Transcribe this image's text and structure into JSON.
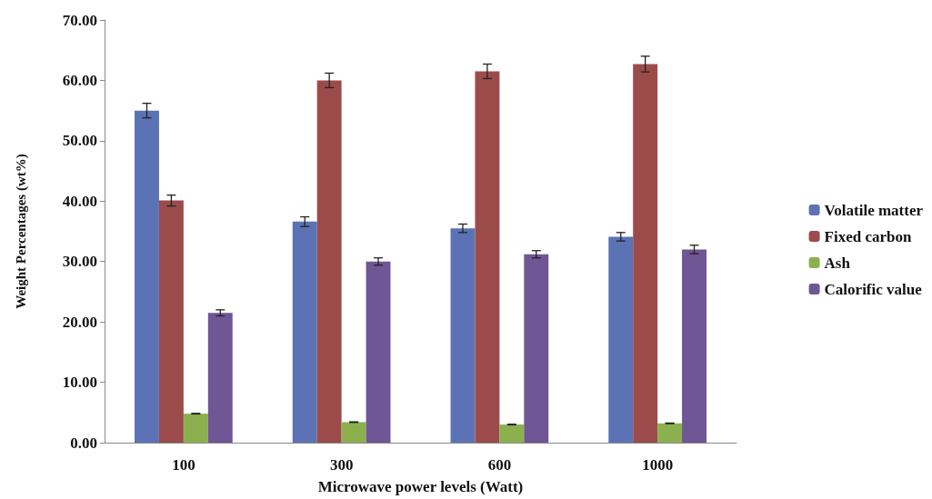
{
  "chart_data": {
    "type": "bar",
    "xlabel": "Microwave power levels (Watt)",
    "ylabel": "Weight Percentages (wt%)",
    "categories": [
      "100",
      "300",
      "600",
      "1000"
    ],
    "series": [
      {
        "name": "Volatile matter",
        "color": "#5b73b4",
        "values": [
          55.0,
          36.6,
          35.5,
          34.1
        ],
        "errors": [
          1.2,
          0.8,
          0.7,
          0.7
        ]
      },
      {
        "name": "Fixed carbon",
        "color": "#9c4b4b",
        "values": [
          40.1,
          60.0,
          61.5,
          62.7
        ],
        "errors": [
          0.9,
          1.2,
          1.2,
          1.3
        ]
      },
      {
        "name": "Ash",
        "color": "#8db04f",
        "values": [
          4.8,
          3.4,
          3.0,
          3.2
        ],
        "errors": [
          0.05,
          0.05,
          0.05,
          0.05
        ]
      },
      {
        "name": "Calorific value",
        "color": "#6f5694",
        "values": [
          21.5,
          30.0,
          31.2,
          32.0
        ],
        "errors": [
          0.5,
          0.6,
          0.6,
          0.7
        ]
      }
    ],
    "ylim": [
      0,
      70
    ],
    "yticks": [
      {
        "value": 0,
        "label": "0.00"
      },
      {
        "value": 10,
        "label": "10.00"
      },
      {
        "value": 20,
        "label": "20.00"
      },
      {
        "value": 30,
        "label": "30.00"
      },
      {
        "value": 40,
        "label": "40.00"
      },
      {
        "value": 50,
        "label": "50.00"
      },
      {
        "value": 60,
        "label": "60.00"
      },
      {
        "value": 70,
        "label": "70.00"
      }
    ],
    "grid": false,
    "legend": "right"
  }
}
